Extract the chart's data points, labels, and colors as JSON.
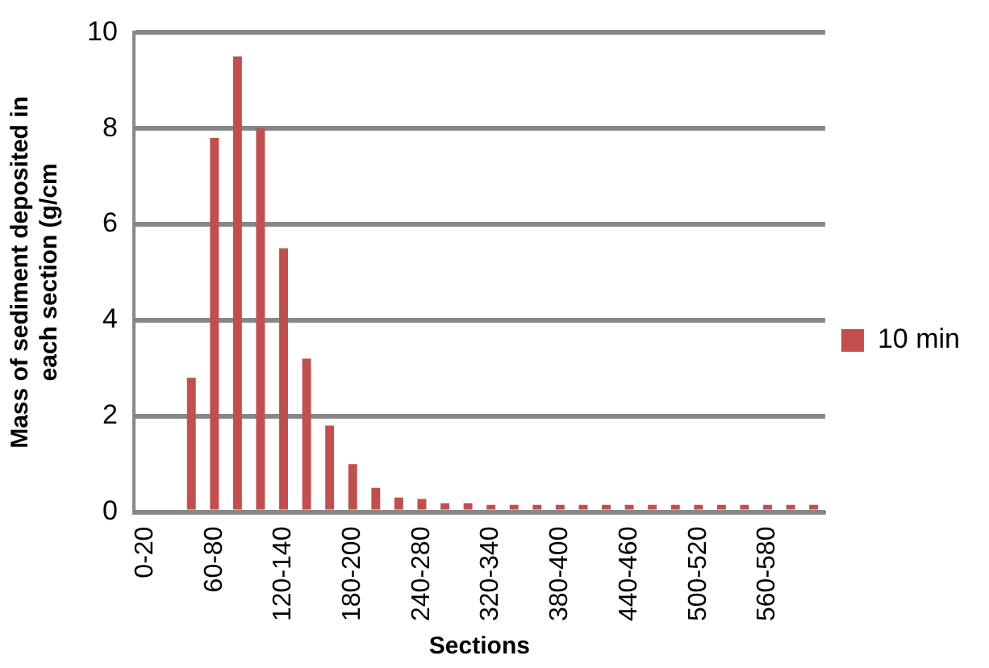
{
  "chart_data": {
    "type": "bar",
    "xlabel": "Sections",
    "ylabel": [
      "Mass of sediment deposited in",
      "each section (g/cm"
    ],
    "categories": [
      "0-20",
      null,
      null,
      "60-80",
      null,
      null,
      "120-140",
      null,
      null,
      "180-200",
      null,
      null,
      "240-280",
      null,
      null,
      "320-340",
      null,
      null,
      "380-400",
      null,
      null,
      "440-460",
      null,
      null,
      "500-520",
      null,
      null,
      "560-580",
      null,
      null
    ],
    "series": [
      {
        "name": "10 min",
        "color": "#c0504d",
        "values": [
          null,
          null,
          2.8,
          7.8,
          9.5,
          8.0,
          5.5,
          3.2,
          1.8,
          1.0,
          0.5,
          0.3,
          0.27,
          0.18,
          0.18,
          0.15,
          0.15,
          0.15,
          0.15,
          0.15,
          0.15,
          0.15,
          0.15,
          0.15,
          0.15,
          0.15,
          0.15,
          0.15,
          0.15,
          0.15
        ]
      }
    ],
    "ylim": [
      0,
      10
    ],
    "yticks": [
      0,
      2,
      4,
      6,
      8,
      10
    ],
    "grid": "y",
    "legend": "right"
  }
}
